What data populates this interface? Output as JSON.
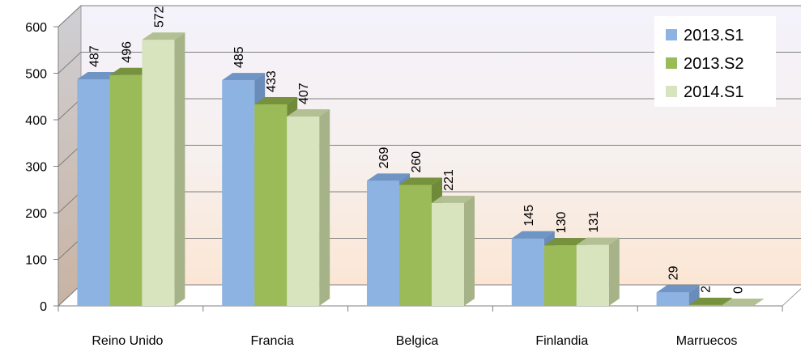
{
  "chart_data": {
    "type": "bar",
    "categories": [
      "Reino Unido",
      "Francia",
      "Belgica",
      "Finlandia",
      "Marruecos"
    ],
    "series": [
      {
        "name": "2013.S1",
        "values": [
          487,
          485,
          269,
          145,
          29
        ],
        "color": "#8db3e2",
        "top_color": "#6f94c6",
        "side_color": "#6a8cba"
      },
      {
        "name": "2013.S2",
        "values": [
          496,
          433,
          260,
          130,
          2
        ],
        "color": "#9bbb59",
        "top_color": "#76923c",
        "side_color": "#6f8a38"
      },
      {
        "name": "2014.S1",
        "values": [
          572,
          407,
          221,
          131,
          0
        ],
        "color": "#d7e4bd",
        "top_color": "#b3c094",
        "side_color": "#a6b287"
      }
    ],
    "ylim": [
      0,
      600
    ],
    "yticks": [
      0,
      100,
      200,
      300,
      400,
      500,
      600
    ],
    "legend_position": "top-right",
    "grid": true,
    "title": "",
    "xlabel": "",
    "ylabel": ""
  }
}
